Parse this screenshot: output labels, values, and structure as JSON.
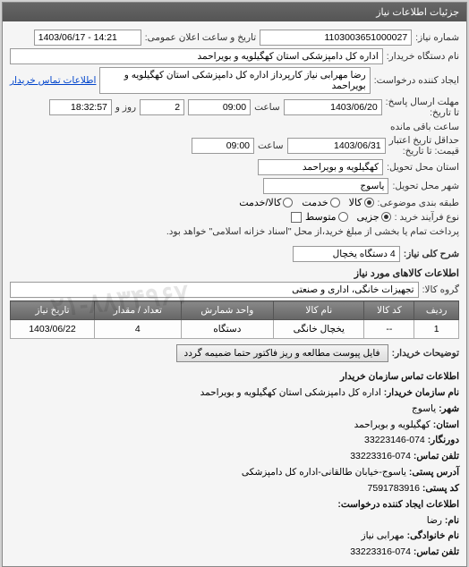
{
  "panel_title": "جزئیات اطلاعات نیاز",
  "fields": {
    "need_no_label": "شماره نیاز:",
    "need_no": "1103003651000027",
    "announce_label": "تاریخ و ساعت اعلان عمومی:",
    "announce_value": "1403/06/17 - 14:21",
    "buyer_device_label": "نام دستگاه خریدار:",
    "buyer_device": "اداره کل دامپزشکی استان کهگیلویه و بویراحمد",
    "creator_label": "ایجاد کننده درخواست:",
    "creator": "رضا مهرابی نیاز کارپرداز اداره کل دامپزشکی استان کهگیلویه و بویراحمد",
    "buyer_contact_link": "اطلاعات تماس خریدار",
    "deadline_label": "مهلت ارسال پاسخ:",
    "deadline_from_label": "تا تاریخ:",
    "deadline_date": "1403/06/20",
    "time_label": "ساعت",
    "deadline_time": "09:00",
    "day_label": "روز و",
    "days_remaining": "2",
    "remaining_time": "18:32:57",
    "remaining_label": "ساعت باقی مانده",
    "validity_label": "حداقل تاریخ اعتبار",
    "validity_sub": "قیمت: تا تاریخ:",
    "validity_date": "1403/06/31",
    "validity_time": "09:00",
    "province_label": "استان محل تحویل:",
    "province": "کهگیلویه و بویراحمد",
    "city_label": "شهر محل تحویل:",
    "city": "یاسوج",
    "category_label": "طبقه بندی موضوعی:",
    "kala": "کالا",
    "khadamat": "خدمت",
    "kala_khadamat": "کالا/خدمت",
    "process_label": "نوع فرآیند خرید :",
    "jozee": "جزیی",
    "motavaset": "متوسط",
    "payment_note": "پرداخت تمام یا بخشی از مبلغ خرید،از محل \"اسناد خزانه اسلامی\" خواهد بود.",
    "summary_label": "شرح کلی نیاز:",
    "summary": "4 دستگاه یخچال",
    "goods_info_title": "اطلاعات کالاهای مورد نیاز",
    "group_label": "گروه کالا:",
    "group_value": "تجهیزات خانگی، اداری و صنعتی"
  },
  "table": {
    "headers": [
      "ردیف",
      "کد کالا",
      "نام کالا",
      "واحد شمارش",
      "تعداد / مقدار",
      "تاریخ نیاز"
    ],
    "rows": [
      [
        "1",
        "--",
        "یخچال خانگی",
        "دستگاه",
        "4",
        "1403/06/22"
      ]
    ]
  },
  "buyer_notes_label": "توضیحات خریدار:",
  "attach_btn": "فایل پیوست مطالعه و ریز فاکتور حتما ضمیمه گردد",
  "contact": {
    "title": "اطلاعات تماس سازمان خریدار",
    "org_label": "نام سازمان خریدار:",
    "org": "اداره کل دامپزشکی استان کهگیلویه و بویراحمد",
    "city_label": "شهر:",
    "city": "یاسوج",
    "province_label": "استان:",
    "province": "کهگیلویه و بویراحمد",
    "fax_label": "دورنگار:",
    "fax": "074-33223146",
    "contact_tel_label": "تلفن تماس:",
    "contact_tel": "074-33223316",
    "address_label": "آدرس پستی:",
    "address": "یاسوج-خیابان طالقانی-اداره کل دامپزشکی",
    "postal_label": "کد پستی:",
    "postal": "7591783916",
    "request_creator_label": "اطلاعات ایجاد کننده درخواست:",
    "name_label": "نام:",
    "name": "رضا",
    "family_label": "نام خانوادگی:",
    "family": "مهرابی نیاز",
    "tel_label": "تلفن تماس:",
    "tel": "074-33223316"
  },
  "watermark": "۰۲۱-۸۸۳۴۹۶۷"
}
